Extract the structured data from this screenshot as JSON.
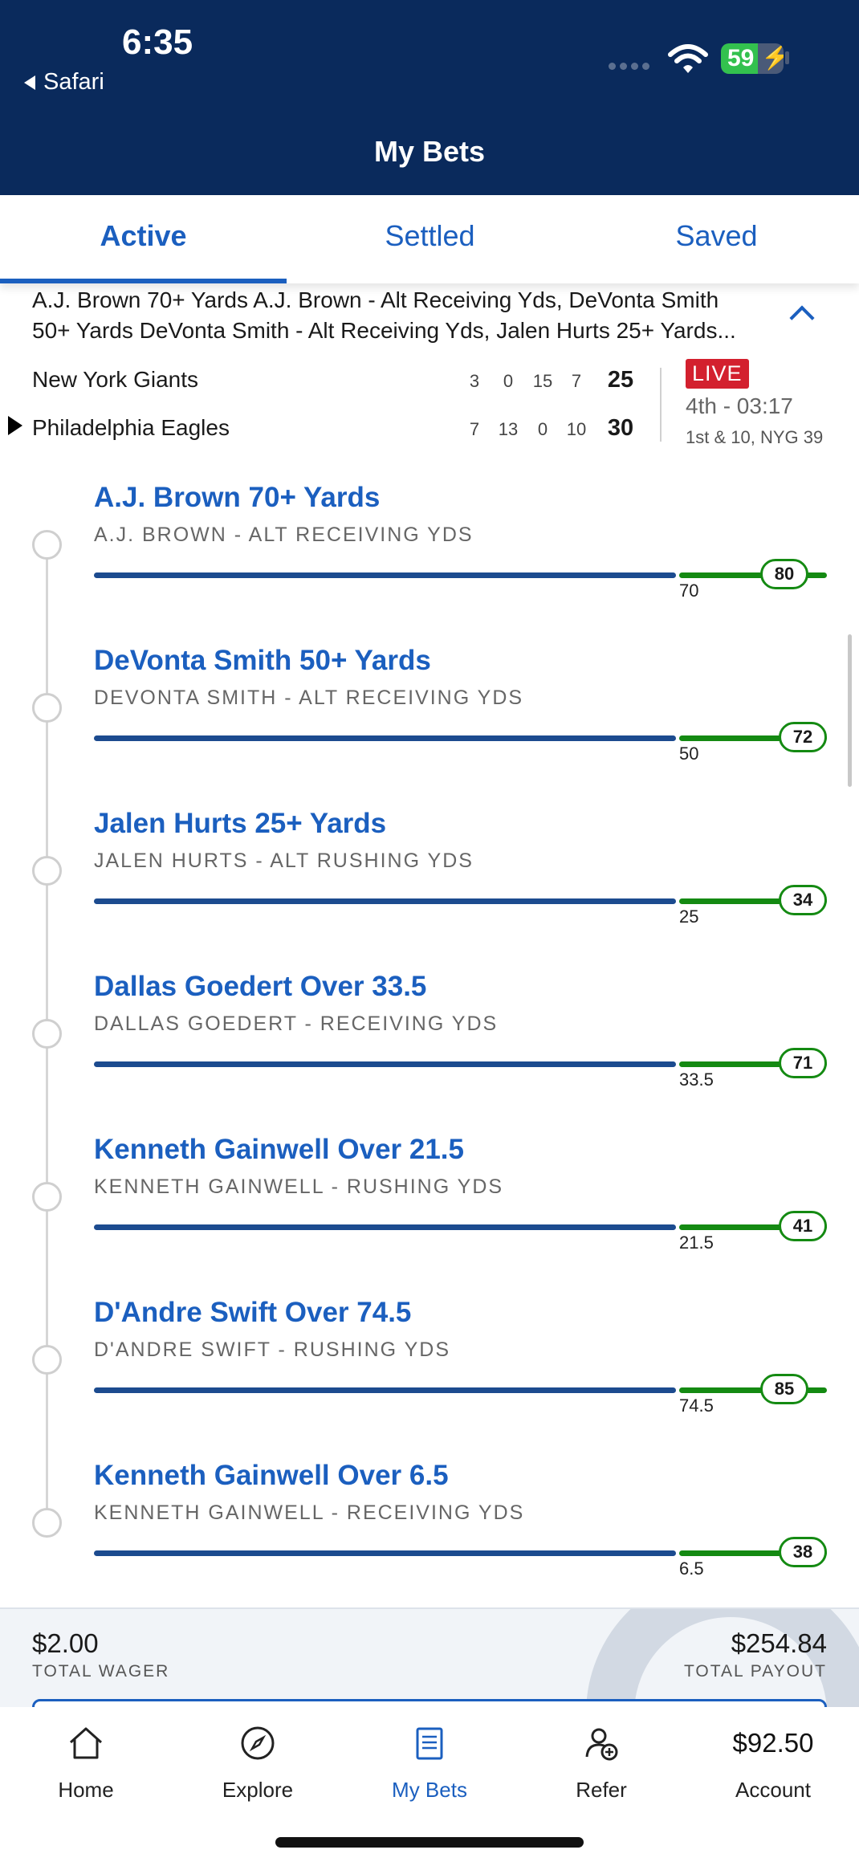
{
  "status_bar": {
    "time": "6:35",
    "back_app": "Safari",
    "battery": "59"
  },
  "header": {
    "title": "My Bets"
  },
  "tabs": [
    {
      "label": "Active",
      "active": true
    },
    {
      "label": "Settled",
      "active": false
    },
    {
      "label": "Saved",
      "active": false
    }
  ],
  "bet": {
    "description_line1": "A.J. Brown 70+ Yards A.J. Brown - Alt Receiving Yds, DeVonta Smith",
    "description_line2": "50+ Yards DeVonta Smith - Alt Receiving Yds, Jalen Hurts 25+ Yards..."
  },
  "scoreboard": {
    "teams": [
      {
        "name": "New York Giants",
        "quarters": [
          "3",
          "0",
          "15",
          "7"
        ],
        "total": "25"
      },
      {
        "name": "Philadelphia Eagles",
        "quarters": [
          "7",
          "13",
          "0",
          "10"
        ],
        "total": "30",
        "possession": true
      }
    ],
    "live_label": "LIVE",
    "clock": "4th - 03:17",
    "down_distance": "1st & 10, NYG 39"
  },
  "legs": [
    {
      "title": "A.J. Brown 70+ Yards",
      "market": "A.J. BROWN - ALT RECEIVING YDS",
      "line": "70",
      "current": "80"
    },
    {
      "title": "DeVonta Smith 50+ Yards",
      "market": "DEVONTA SMITH - ALT RECEIVING YDS",
      "line": "50",
      "current": "72"
    },
    {
      "title": "Jalen Hurts 25+ Yards",
      "market": "JALEN HURTS - ALT RUSHING YDS",
      "line": "25",
      "current": "34"
    },
    {
      "title": "Dallas Goedert Over 33.5",
      "market": "DALLAS GOEDERT - RECEIVING YDS",
      "line": "33.5",
      "current": "71"
    },
    {
      "title": "Kenneth Gainwell Over 21.5",
      "market": "KENNETH GAINWELL - RUSHING YDS",
      "line": "21.5",
      "current": "41"
    },
    {
      "title": "D'Andre Swift Over 74.5",
      "market": "D'ANDRE SWIFT - RUSHING YDS",
      "line": "74.5",
      "current": "85"
    },
    {
      "title": "Kenneth Gainwell Over 6.5",
      "market": "KENNETH GAINWELL - RECEIVING YDS",
      "line": "6.5",
      "current": "38"
    }
  ],
  "totals": {
    "wager_value": "$2.00",
    "wager_label": "TOTAL WAGER",
    "payout_value": "$254.84",
    "payout_label": "TOTAL PAYOUT"
  },
  "nav": {
    "home": "Home",
    "explore": "Explore",
    "my_bets": "My Bets",
    "refer": "Refer",
    "account_balance": "$92.50",
    "account": "Account"
  },
  "colors": {
    "header": "#0a2a5c",
    "accent": "#1b5fbf",
    "progress_blue": "#1c4b8f",
    "progress_green": "#148a12",
    "live": "#d3202e"
  }
}
